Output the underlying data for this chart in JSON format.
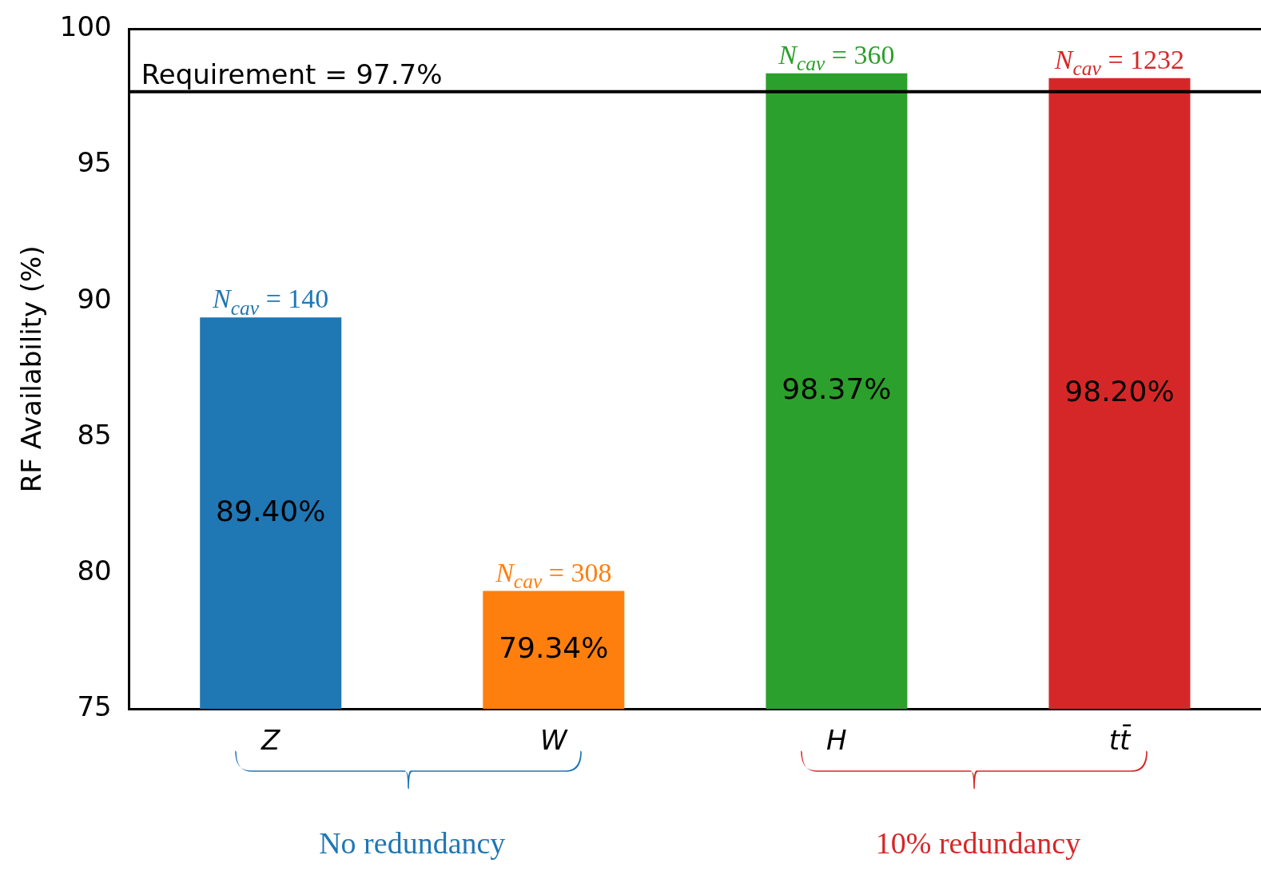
{
  "chart_data": {
    "type": "bar",
    "ylabel": "RF Availability (%)",
    "categories": [
      "Z",
      "W",
      "H",
      "tt̄"
    ],
    "values": [
      89.4,
      79.34,
      98.37,
      98.2
    ],
    "colors": [
      "#1f77b4",
      "#ff7f0e",
      "#2ca02c",
      "#d62728"
    ],
    "value_labels": [
      "89.40%",
      "79.34%",
      "98.37%",
      "98.20%"
    ],
    "ylim": [
      75,
      100
    ],
    "yticks": [
      75,
      80,
      85,
      90,
      95,
      100
    ],
    "grid": false,
    "legend": false,
    "ref_lines": [
      {
        "axis": "y",
        "value": 97.7,
        "label": "Requirement = 97.7%",
        "color": "#000000"
      }
    ],
    "annotations": [
      {
        "text": "N$_{cav}$ = 140",
        "x": "Z",
        "y": 89.4
      },
      {
        "text": "N$_{cav}$ = 308",
        "x": "W",
        "y": 79.34
      },
      {
        "text": "N$_{cav}$ = 360",
        "x": "H",
        "y": 98.37
      },
      {
        "text": "N$_{cav}$ = 1232",
        "x": "tt̄",
        "y": 98.2
      },
      "No redundancy",
      "10% redundancy"
    ]
  }
}
